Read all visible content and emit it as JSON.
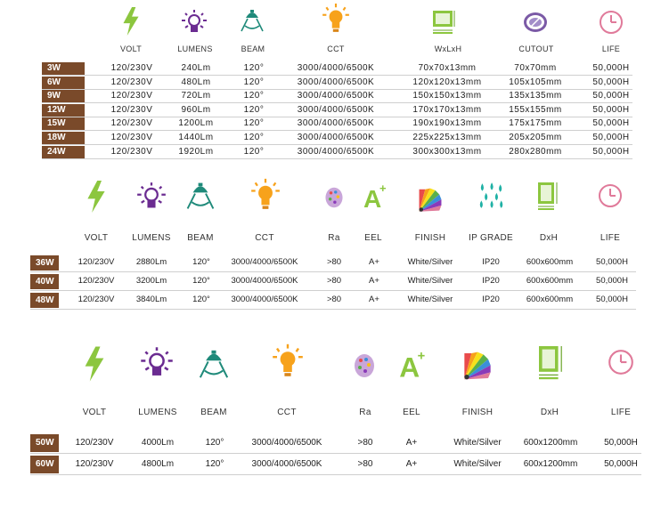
{
  "colors": {
    "watt_bg": "#7a4a2a",
    "volt_icon": "#8cc63f",
    "lumens_icon": "#6b2c91",
    "beam_icon": "#1f8a7a",
    "cct_icon": "#f7a21b",
    "life_icon": "#e07a9a"
  },
  "section1": {
    "headers": {
      "volt": "VOLT",
      "lumens": "LUMENS",
      "beam": "BEAM",
      "cct": "CCT",
      "size": "WxLxH",
      "cutout": "CUTOUT",
      "life": "LIFE"
    },
    "rows": [
      {
        "watt": "3W",
        "volt": "120/230V",
        "lumens": "240Lm",
        "beam": "120°",
        "cct": "3000/4000/6500K",
        "size": "70x70x13mm",
        "cutout": "70x70mm",
        "life": "50,000H"
      },
      {
        "watt": "6W",
        "volt": "120/230V",
        "lumens": "480Lm",
        "beam": "120°",
        "cct": "3000/4000/6500K",
        "size": "120x120x13mm",
        "cutout": "105x105mm",
        "life": "50,000H"
      },
      {
        "watt": "9W",
        "volt": "120/230V",
        "lumens": "720Lm",
        "beam": "120°",
        "cct": "3000/4000/6500K",
        "size": "150x150x13mm",
        "cutout": "135x135mm",
        "life": "50,000H"
      },
      {
        "watt": "12W",
        "volt": "120/230V",
        "lumens": "960Lm",
        "beam": "120°",
        "cct": "3000/4000/6500K",
        "size": "170x170x13mm",
        "cutout": "155x155mm",
        "life": "50,000H"
      },
      {
        "watt": "15W",
        "volt": "120/230V",
        "lumens": "1200Lm",
        "beam": "120°",
        "cct": "3000/4000/6500K",
        "size": "190x190x13mm",
        "cutout": "175x175mm",
        "life": "50,000H"
      },
      {
        "watt": "18W",
        "volt": "120/230V",
        "lumens": "1440Lm",
        "beam": "120°",
        "cct": "3000/4000/6500K",
        "size": "225x225x13mm",
        "cutout": "205x205mm",
        "life": "50,000H"
      },
      {
        "watt": "24W",
        "volt": "120/230V",
        "lumens": "1920Lm",
        "beam": "120°",
        "cct": "3000/4000/6500K",
        "size": "300x300x13mm",
        "cutout": "280x280mm",
        "life": "50,000H"
      }
    ]
  },
  "section2": {
    "headers": {
      "volt": "VOLT",
      "lumens": "LUMENS",
      "beam": "BEAM",
      "cct": "CCT",
      "ra": "Ra",
      "eel": "EEL",
      "finish": "FINISH",
      "ip": "IP GRADE",
      "dxh": "DxH",
      "life": "LIFE"
    },
    "rows": [
      {
        "watt": "36W",
        "volt": "120/230V",
        "lumens": "2880Lm",
        "beam": "120°",
        "cct": "3000/4000/6500K",
        "ra": ">80",
        "eel": "A+",
        "finish": "White/Silver",
        "ip": "IP20",
        "dxh": "600x600mm",
        "life": "50,000H"
      },
      {
        "watt": "40W",
        "volt": "120/230V",
        "lumens": "3200Lm",
        "beam": "120°",
        "cct": "3000/4000/6500K",
        "ra": ">80",
        "eel": "A+",
        "finish": "White/Silver",
        "ip": "IP20",
        "dxh": "600x600mm",
        "life": "50,000H"
      },
      {
        "watt": "48W",
        "volt": "120/230V",
        "lumens": "3840Lm",
        "beam": "120°",
        "cct": "3000/4000/6500K",
        "ra": ">80",
        "eel": "A+",
        "finish": "White/Silver",
        "ip": "IP20",
        "dxh": "600x600mm",
        "life": "50,000H"
      }
    ]
  },
  "section3": {
    "headers": {
      "volt": "VOLT",
      "lumens": "LUMENS",
      "beam": "BEAM",
      "cct": "CCT",
      "ra": "Ra",
      "eel": "EEL",
      "finish": "FINISH",
      "dxh": "DxH",
      "life": "LIFE"
    },
    "rows": [
      {
        "watt": "50W",
        "volt": "120/230V",
        "lumens": "4000Lm",
        "beam": "120°",
        "cct": "3000/4000/6500K",
        "ra": ">80",
        "eel": "A+",
        "finish": "White/Silver",
        "dxh": "600x1200mm",
        "life": "50,000H"
      },
      {
        "watt": "60W",
        "volt": "120/230V",
        "lumens": "4800Lm",
        "beam": "120°",
        "cct": "3000/4000/6500K",
        "ra": ">80",
        "eel": "A+",
        "finish": "White/Silver",
        "dxh": "600x1200mm",
        "life": "50,000H"
      }
    ]
  },
  "icons": [
    "volt-icon",
    "lumens-icon",
    "beam-icon",
    "cct-icon",
    "size-icon",
    "cutout-icon",
    "life-icon",
    "ra-icon",
    "eel-icon",
    "finish-icon",
    "ip-grade-icon"
  ]
}
